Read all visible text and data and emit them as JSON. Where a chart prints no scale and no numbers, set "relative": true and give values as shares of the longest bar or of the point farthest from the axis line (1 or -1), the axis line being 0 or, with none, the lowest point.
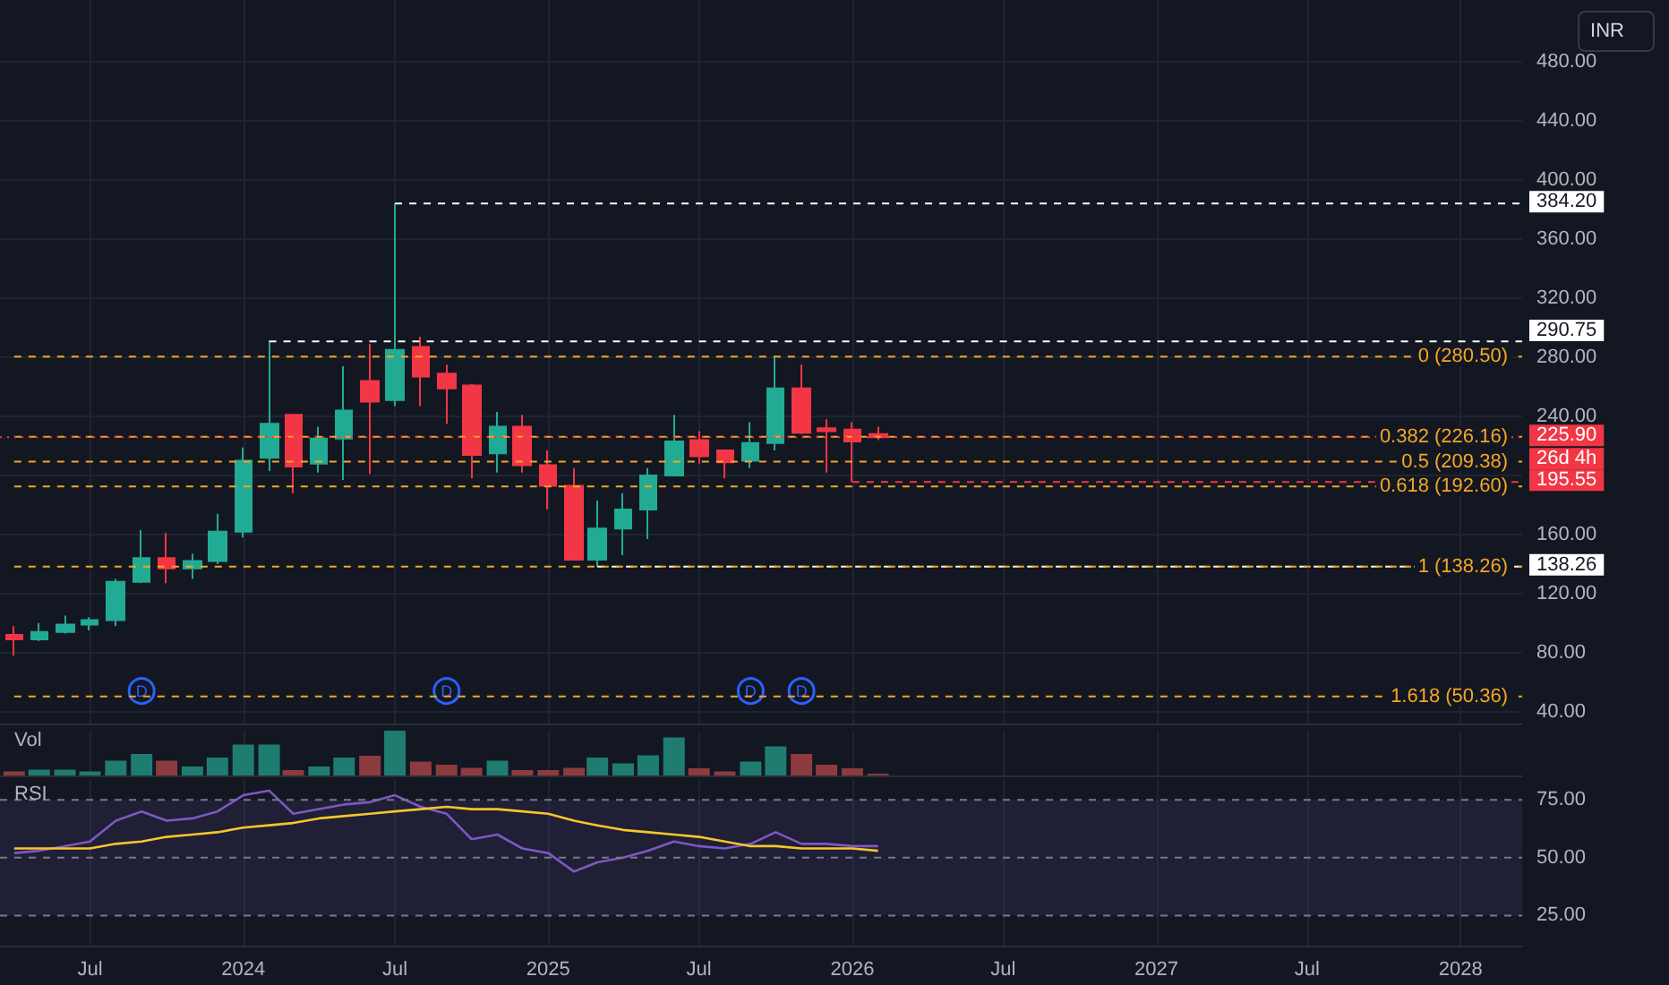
{
  "chart_data": [
    {
      "type": "candlestick",
      "ylabel": "INR",
      "x": [
        "2023-04",
        "2023-05",
        "2023-06",
        "2023-07",
        "2023-08",
        "2023-09",
        "2023-10",
        "2023-11",
        "2023-12",
        "2024-01",
        "2024-02",
        "2024-03",
        "2024-04",
        "2024-05",
        "2024-06",
        "2024-07",
        "2024-08",
        "2024-09",
        "2024-10",
        "2024-11",
        "2024-12",
        "2025-01",
        "2025-02",
        "2025-03",
        "2025-04",
        "2025-05",
        "2025-06",
        "2025-07",
        "2025-08",
        "2025-09",
        "2025-10",
        "2025-11",
        "2025-12",
        "2026-01",
        "2026-02"
      ],
      "ohlc": [
        [
          92,
          98,
          78,
          89
        ],
        [
          89,
          100,
          88,
          94
        ],
        [
          94,
          105,
          93,
          99
        ],
        [
          99,
          104,
          95,
          102
        ],
        [
          102,
          130,
          98,
          128
        ],
        [
          128,
          163,
          127,
          144
        ],
        [
          144,
          161,
          127,
          137
        ],
        [
          137,
          147,
          130,
          142
        ],
        [
          142,
          174,
          140,
          162
        ],
        [
          162,
          219,
          158,
          210
        ],
        [
          212,
          290.75,
          203,
          235
        ],
        [
          241,
          241,
          188,
          206
        ],
        [
          208,
          233,
          202,
          225
        ],
        [
          225,
          274,
          197,
          244
        ],
        [
          264,
          289,
          201,
          250
        ],
        [
          251,
          384.2,
          247,
          285
        ],
        [
          287,
          294,
          247,
          267
        ],
        [
          269,
          275,
          235,
          259
        ],
        [
          261,
          262,
          198,
          214
        ],
        [
          215,
          243,
          202,
          233
        ],
        [
          233,
          241,
          202,
          207
        ],
        [
          207,
          217,
          177,
          193
        ],
        [
          193,
          205,
          143,
          143
        ],
        [
          143,
          183,
          138.26,
          164
        ],
        [
          164,
          188,
          146,
          177
        ],
        [
          177,
          205,
          157,
          200
        ],
        [
          200,
          241,
          200,
          223
        ],
        [
          224,
          230,
          208,
          213
        ],
        [
          217,
          217,
          198,
          209
        ],
        [
          210,
          236,
          205,
          222
        ],
        [
          222,
          280.5,
          217,
          259
        ],
        [
          259,
          275,
          228,
          229
        ],
        [
          232,
          238,
          202,
          230
        ],
        [
          231,
          236,
          195.55,
          223
        ],
        [
          228,
          233,
          224,
          225.9
        ]
      ],
      "colors": [
        "#f23645",
        "#22ab94",
        "#22ab94",
        "#22ab94",
        "#22ab94",
        "#22ab94",
        "#f23645",
        "#22ab94",
        "#22ab94",
        "#22ab94",
        "#22ab94",
        "#f23645",
        "#22ab94",
        "#22ab94",
        "#f23645",
        "#22ab94",
        "#f23645",
        "#f23645",
        "#f23645",
        "#22ab94",
        "#f23645",
        "#f23645",
        "#f23645",
        "#22ab94",
        "#22ab94",
        "#22ab94",
        "#22ab94",
        "#f23645",
        "#f23645",
        "#22ab94",
        "#22ab94",
        "#f23645",
        "#f23645",
        "#f23645",
        "#f23645"
      ],
      "xlim": [
        "2023-03-15",
        "2028-03-15"
      ],
      "xticks": [
        {
          "value": "2023-07",
          "label": null
        },
        {
          "value": "2024",
          "label": null
        },
        {
          "value": "2024-07",
          "label": null
        },
        {
          "value": "2025",
          "label": null
        },
        {
          "value": "2025-07",
          "label": null
        },
        {
          "value": "2026",
          "label": null
        },
        {
          "value": "2026-07",
          "label": null
        },
        {
          "value": "2027",
          "label": null
        },
        {
          "value": "2027-07",
          "label": null
        },
        {
          "value": "2028",
          "label": null
        }
      ],
      "ylim": [
        32,
        522
      ],
      "yticks": [
        {
          "value": 40,
          "label": "40.00"
        },
        {
          "value": 80,
          "label": "80.00"
        },
        {
          "value": 120,
          "label": "120.00"
        },
        {
          "value": 160,
          "label": "160.00"
        },
        {
          "value": 200,
          "label": null
        },
        {
          "value": 240,
          "label": "240.00"
        },
        {
          "value": 280,
          "label": "280.00"
        },
        {
          "value": 320,
          "label": "320.00"
        },
        {
          "value": 360,
          "label": "360.00"
        },
        {
          "value": 400,
          "label": "400.00"
        },
        {
          "value": 440,
          "label": "440.00"
        },
        {
          "value": 480,
          "label": "480.00"
        }
      ],
      "tick_labels": "y",
      "grid": true,
      "ref_lines": [
        {
          "axis": "y",
          "value": 384.2,
          "label": "384.20",
          "color": "#ffffff",
          "line_style": "dashed"
        },
        {
          "axis": "y",
          "value": 290.75,
          "label": "290.75",
          "color": "#ffffff",
          "line_style": "dashed"
        },
        {
          "axis": "y",
          "value": 138.26,
          "label": "138.26",
          "color": "#ffffff",
          "line_style": "dashed"
        },
        {
          "axis": "y",
          "value": 280.5,
          "label": "0 (280.50)",
          "color": "#f5a623",
          "line_style": "dashed"
        },
        {
          "axis": "y",
          "value": 226.16,
          "label": "0.382 (226.16)",
          "color": "#f5a623",
          "line_style": "dashed"
        },
        {
          "axis": "y",
          "value": 209.38,
          "label": "0.5 (209.38)",
          "color": "#f5a623",
          "line_style": "dashed"
        },
        {
          "axis": "y",
          "value": 192.6,
          "label": "0.618 (192.60)",
          "color": "#f5a623",
          "line_style": "dashed"
        },
        {
          "axis": "y",
          "value": 138.26,
          "label": "1 (138.26)",
          "color": "#f5a623",
          "line_style": "dashed"
        },
        {
          "axis": "y",
          "value": 50.36,
          "label": "1.618 (50.36)",
          "color": "#f5a623",
          "line_style": "dashed"
        },
        {
          "axis": "y",
          "value": 225.9,
          "label": "225.90",
          "color": "#f23645",
          "line_style": "dotted"
        },
        {
          "axis": "y",
          "value": 195.55,
          "label": "195.55",
          "color": "#f23645",
          "line_style": "dashed"
        }
      ],
      "annotations": [
        {
          "text": "D",
          "x": "2023-09"
        },
        {
          "text": "D",
          "x": "2024-09"
        },
        {
          "text": "D",
          "x": "2025-09"
        },
        {
          "text": "D",
          "x": "2025-11"
        },
        "26d 4h"
      ]
    },
    {
      "type": "bar",
      "title": "Vol",
      "relative": true,
      "tick_labels": false,
      "grid": "x",
      "x": [
        "2023-04",
        "2023-05",
        "2023-06",
        "2023-07",
        "2023-08",
        "2023-09",
        "2023-10",
        "2023-11",
        "2023-12",
        "2024-01",
        "2024-02",
        "2024-03",
        "2024-04",
        "2024-05",
        "2024-06",
        "2024-07",
        "2024-08",
        "2024-09",
        "2024-10",
        "2024-11",
        "2024-12",
        "2025-01",
        "2025-02",
        "2025-03",
        "2025-04",
        "2025-05",
        "2025-06",
        "2025-07",
        "2025-08",
        "2025-09",
        "2025-10",
        "2025-11",
        "2025-12",
        "2026-01",
        "2026-02"
      ],
      "values": [
        0.09,
        0.13,
        0.13,
        0.09,
        0.33,
        0.48,
        0.33,
        0.2,
        0.4,
        0.69,
        0.69,
        0.12,
        0.2,
        0.4,
        0.44,
        1,
        0.31,
        0.24,
        0.17,
        0.33,
        0.12,
        0.12,
        0.17,
        0.4,
        0.27,
        0.45,
        0.85,
        0.16,
        0.09,
        0.31,
        0.65,
        0.48,
        0.24,
        0.16,
        0.04
      ],
      "colors": [
        "#8c3b3f",
        "#1e7d70",
        "#1e7d70",
        "#1e7d70",
        "#1e7d70",
        "#1e7d70",
        "#8c3b3f",
        "#1e7d70",
        "#1e7d70",
        "#1e7d70",
        "#1e7d70",
        "#8c3b3f",
        "#1e7d70",
        "#1e7d70",
        "#8c3b3f",
        "#1e7d70",
        "#8c3b3f",
        "#8c3b3f",
        "#8c3b3f",
        "#1e7d70",
        "#8c3b3f",
        "#8c3b3f",
        "#8c3b3f",
        "#1e7d70",
        "#1e7d70",
        "#1e7d70",
        "#1e7d70",
        "#8c3b3f",
        "#8c3b3f",
        "#1e7d70",
        "#1e7d70",
        "#8c3b3f",
        "#8c3b3f",
        "#8c3b3f",
        "#8c3b3f"
      ],
      "xlim": [
        "2023-03-15",
        "2028-03-15"
      ],
      "xticks": [
        {
          "value": "2023-07",
          "label": null
        },
        {
          "value": "2024",
          "label": null
        },
        {
          "value": "2024-07",
          "label": null
        },
        {
          "value": "2025",
          "label": null
        },
        {
          "value": "2025-07",
          "label": null
        },
        {
          "value": "2026",
          "label": null
        },
        {
          "value": "2026-07",
          "label": null
        },
        {
          "value": "2027",
          "label": null
        },
        {
          "value": "2027-07",
          "label": null
        },
        {
          "value": "2028",
          "label": null
        }
      ]
    },
    {
      "type": "line",
      "title": "RSI",
      "marker": "none",
      "grid": "x",
      "x": [
        "2023-04",
        "2023-05",
        "2023-06",
        "2023-07",
        "2023-08",
        "2023-09",
        "2023-10",
        "2023-11",
        "2023-12",
        "2024-01",
        "2024-02",
        "2024-03",
        "2024-04",
        "2024-05",
        "2024-06",
        "2024-07",
        "2024-08",
        "2024-09",
        "2024-10",
        "2024-11",
        "2024-12",
        "2025-01",
        "2025-02",
        "2025-03",
        "2025-04",
        "2025-05",
        "2025-06",
        "2025-07",
        "2025-08",
        "2025-09",
        "2025-10",
        "2025-11",
        "2025-12",
        "2026-01",
        "2026-02"
      ],
      "series": [
        {
          "color": "#7e57c2",
          "values": [
            52,
            53,
            55,
            57,
            66,
            70,
            66,
            67,
            70,
            77,
            79,
            69,
            71,
            73,
            74,
            77,
            72,
            69,
            58,
            60,
            54,
            52,
            44,
            48,
            50,
            53,
            57,
            55,
            54,
            56,
            61,
            56,
            56,
            55,
            55
          ]
        },
        {
          "color": "#f7c52b",
          "values": [
            54,
            54,
            54,
            54,
            56,
            57,
            59,
            60,
            61,
            63,
            64,
            65,
            67,
            68,
            69,
            70,
            71,
            72,
            71,
            71,
            70,
            69,
            66,
            64,
            62,
            61,
            60,
            59,
            57,
            55,
            55,
            54,
            54,
            54,
            53
          ]
        }
      ],
      "xlim": [
        "2023-03-15",
        "2028-03-15"
      ],
      "xticks": [
        {
          "value": "2023-07",
          "label": "Jul"
        },
        {
          "value": "2024",
          "label": "2024"
        },
        {
          "value": "2024-07",
          "label": "Jul"
        },
        {
          "value": "2025",
          "label": "2025"
        },
        {
          "value": "2025-07",
          "label": "Jul"
        },
        {
          "value": "2026",
          "label": "2026"
        },
        {
          "value": "2026-07",
          "label": "Jul"
        },
        {
          "value": "2027",
          "label": "2027"
        },
        {
          "value": "2027-07",
          "label": "Jul"
        },
        {
          "value": "2028",
          "label": "2028"
        }
      ],
      "ylim": [
        12,
        84
      ],
      "yticks": [
        {
          "value": 25,
          "label": "25.00"
        },
        {
          "value": 50,
          "label": "50.00"
        },
        {
          "value": 75,
          "label": "75.00"
        }
      ],
      "ref_lines": [
        {
          "axis": "y",
          "value": 75,
          "color": "#787b86",
          "line_style": "dashed"
        },
        {
          "axis": "y",
          "value": 50,
          "color": "#787b86",
          "line_style": "dashed"
        },
        {
          "axis": "y",
          "value": 25,
          "color": "#787b86",
          "line_style": "dashed"
        }
      ],
      "bands": [
        {
          "axis": "y",
          "from": 25,
          "to": 75,
          "color": "#7e57c2"
        }
      ]
    }
  ]
}
